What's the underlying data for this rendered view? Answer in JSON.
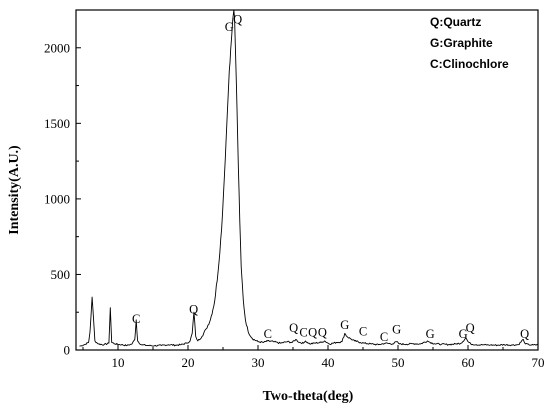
{
  "chart_data": {
    "type": "line",
    "title": "",
    "xlabel": "Two-theta(deg)",
    "ylabel": "Intensity(A.U.)",
    "xlim": [
      4,
      70
    ],
    "ylim": [
      0,
      2250
    ],
    "xticks": [
      10,
      20,
      30,
      40,
      50,
      60,
      70
    ],
    "yticks": [
      0,
      500,
      1000,
      1500,
      2000
    ],
    "grid": false,
    "legend_position": "top-right",
    "legend": [
      "Q:Quartz",
      "G:Graphite",
      "C:Clinochlore"
    ],
    "series": [
      {
        "x": [
          4.5,
          5.2,
          5.8,
          6.0,
          6.3,
          6.7,
          7.2,
          8.0,
          8.7,
          8.9,
          9.1,
          9.6,
          10.5,
          11.3,
          12.0,
          12.4,
          12.6,
          12.8,
          13.3,
          14.2,
          15.2,
          16.2,
          17.2,
          18.2,
          19.0,
          19.8,
          20.3,
          20.6,
          20.85,
          21.1,
          21.4,
          22.0,
          22.6,
          23.2,
          23.8,
          24.3,
          24.8,
          25.2,
          25.6,
          25.9,
          26.2,
          26.4,
          26.55,
          26.65,
          26.8,
          27.0,
          27.2,
          27.4,
          27.6,
          27.9,
          28.2,
          28.6,
          29.2,
          30.0,
          30.8,
          31.4,
          32.2,
          33.2,
          34.2,
          34.9,
          35.4,
          35.9,
          36.5,
          36.8,
          37.4,
          38.0,
          39.0,
          39.5,
          40.2,
          41.2,
          42.0,
          42.4,
          42.7,
          43.2,
          43.8,
          44.6,
          45.2,
          46.2,
          47.2,
          48.2,
          49.2,
          49.8,
          50.2,
          51.2,
          52.2,
          53.2,
          54.2,
          54.6,
          55.2,
          56.2,
          57.2,
          58.2,
          59.0,
          59.7,
          60.0,
          60.4,
          61.2,
          62.2,
          63.2,
          64.2,
          65.2,
          66.2,
          67.2,
          67.9,
          68.2,
          68.7,
          69.3,
          70.0
        ],
        "y": [
          25,
          35,
          50,
          120,
          350,
          60,
          40,
          35,
          45,
          280,
          50,
          40,
          35,
          30,
          40,
          70,
          200,
          60,
          35,
          30,
          28,
          30,
          35,
          32,
          35,
          45,
          60,
          110,
          250,
          90,
          60,
          90,
          140,
          200,
          320,
          520,
          800,
          1150,
          1550,
          1850,
          2050,
          2190,
          2250,
          2200,
          1950,
          1600,
          1200,
          850,
          550,
          330,
          200,
          120,
          75,
          55,
          50,
          60,
          55,
          45,
          55,
          50,
          70,
          50,
          45,
          60,
          40,
          45,
          50,
          60,
          40,
          50,
          55,
          110,
          90,
          75,
          60,
          50,
          45,
          40,
          35,
          45,
          40,
          55,
          40,
          38,
          42,
          40,
          60,
          50,
          42,
          38,
          36,
          40,
          45,
          80,
          55,
          40,
          35,
          34,
          33,
          32,
          35,
          33,
          35,
          70,
          40,
          35,
          33,
          35
        ]
      }
    ],
    "annotations": [
      {
        "text": "C",
        "x": 12.6,
        "y": 180
      },
      {
        "text": "Q",
        "x": 20.8,
        "y": 240
      },
      {
        "text": "G",
        "x": 25.9,
        "y": 2110
      },
      {
        "text": "Q",
        "x": 27.1,
        "y": 2160
      },
      {
        "text": "C",
        "x": 31.4,
        "y": 80
      },
      {
        "text": "Q",
        "x": 35.1,
        "y": 120
      },
      {
        "text": "C",
        "x": 36.5,
        "y": 90
      },
      {
        "text": "Q",
        "x": 37.8,
        "y": 90
      },
      {
        "text": "Q",
        "x": 39.2,
        "y": 90
      },
      {
        "text": "G",
        "x": 42.4,
        "y": 140
      },
      {
        "text": "C",
        "x": 45.0,
        "y": 95
      },
      {
        "text": "C",
        "x": 48.0,
        "y": 60
      },
      {
        "text": "G",
        "x": 49.8,
        "y": 110
      },
      {
        "text": "G",
        "x": 54.6,
        "y": 80
      },
      {
        "text": "G",
        "x": 59.3,
        "y": 80
      },
      {
        "text": "Q",
        "x": 60.3,
        "y": 120
      },
      {
        "text": "Q",
        "x": 68.1,
        "y": 80
      }
    ]
  }
}
